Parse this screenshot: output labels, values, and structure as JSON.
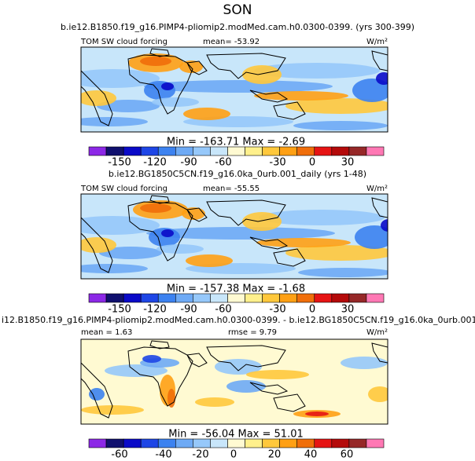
{
  "title": "SON",
  "panels": [
    {
      "subtitle": "b.ie12.B1850.f19_g16.PIMP4-pliomip2.modMed.cam.h0.0300-0399. (yrs 300-399)",
      "label": "TOM SW cloud forcing",
      "stats": [
        "mean= -53.92"
      ],
      "units": "W/m²",
      "minmax": "Min = -163.71  Max =  -2.69",
      "colorbar": {
        "labels": [
          "-150",
          "-120",
          "-90",
          "-60",
          "-30",
          "0",
          "30"
        ],
        "colors": [
          "#8c28e6",
          "#10106e",
          "#0a0ac8",
          "#1e46e6",
          "#3c82f0",
          "#6eaaf5",
          "#96c8fa",
          "#c8e6fa",
          "#fffad2",
          "#fff08c",
          "#ffc83c",
          "#ffa014",
          "#f06e0a",
          "#e61414",
          "#b40a0a",
          "#962828",
          "#ff78b4"
        ]
      }
    },
    {
      "subtitle": "b.ie12.BG1850C5CN.f19_g16.0ka_0urb.001_daily (yrs 1-48)",
      "label": "TOM SW cloud forcing",
      "stats": [
        "mean= -55.55"
      ],
      "units": "W/m²",
      "minmax": "Min = -157.38  Max =  -1.68",
      "colorbar": {
        "labels": [
          "-150",
          "-120",
          "-90",
          "-60",
          "-30",
          "0",
          "30"
        ],
        "colors": [
          "#8c28e6",
          "#10106e",
          "#0a0ac8",
          "#1e46e6",
          "#3c82f0",
          "#6eaaf5",
          "#96c8fa",
          "#c8e6fa",
          "#fffad2",
          "#fff08c",
          "#ffc83c",
          "#ffa014",
          "#f06e0a",
          "#e61414",
          "#b40a0a",
          "#962828",
          "#ff78b4"
        ]
      }
    },
    {
      "subtitle": "i12.B1850.f19_g16.PIMP4-pliomip2.modMed.cam.h0.0300-0399. - b.ie12.BG1850C5CN.f19_g16.0ka_0urb.001_c",
      "stats": [
        "mean =   1.63",
        "rmse =   9.79"
      ],
      "units": "W/m²",
      "minmax": "Min = -56.04  Max =  51.01",
      "colorbar": {
        "labels": [
          "-60",
          "-40",
          "-20",
          "0",
          "20",
          "40",
          "60"
        ],
        "colors": [
          "#8c28e6",
          "#10106e",
          "#0a0ac8",
          "#1e46e6",
          "#3c82f0",
          "#6eaaf5",
          "#96c8fa",
          "#c8e6fa",
          "#fffad2",
          "#fff08c",
          "#ffc83c",
          "#ffa014",
          "#f06e0a",
          "#e61414",
          "#b40a0a",
          "#962828",
          "#ff78b4"
        ]
      }
    }
  ]
}
